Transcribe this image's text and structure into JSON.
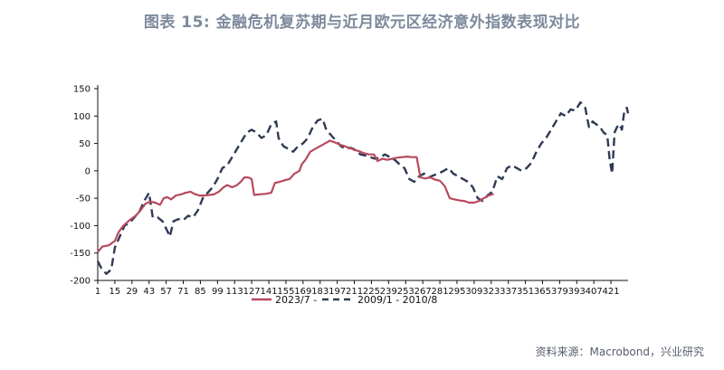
{
  "title": "图表 15: 金融危机复苏期与近月欧元区经济意外指数表现对比",
  "source": "资料来源：Macrobond，兴业研究",
  "colors": {
    "series_2023": "#b9495d",
    "series_2009": "#2f3a55",
    "axis": "#111111"
  },
  "chart_data": {
    "type": "line",
    "ylim": [
      -200,
      150
    ],
    "yticks": [
      -200,
      -150,
      -100,
      -50,
      0,
      50,
      100,
      150
    ],
    "xlim": [
      1,
      435
    ],
    "xticks": [
      1,
      15,
      29,
      43,
      57,
      71,
      85,
      99,
      113,
      127,
      141,
      155,
      169,
      183,
      197,
      211,
      225,
      239,
      253,
      267,
      281,
      295,
      309,
      323,
      337,
      351,
      365,
      379,
      393,
      407,
      421
    ],
    "xtick_labels": [
      "1",
      "15",
      "29",
      "43",
      "57",
      "71",
      "85",
      "99",
      "113",
      "127",
      "141",
      "155",
      "169",
      "183",
      "197",
      "211",
      "225",
      "239",
      "253",
      "267",
      "281",
      "295",
      "309",
      "323",
      "337",
      "351",
      "365",
      "379",
      "393",
      "407",
      "421"
    ],
    "legend": {
      "placement": "bottom",
      "entries": [
        "2023/7 -",
        "2009/1 - 2010/8"
      ]
    },
    "series": [
      {
        "name": "2023/7 -",
        "style": "solid",
        "points": [
          [
            1,
            -148
          ],
          [
            5,
            -138
          ],
          [
            10,
            -136
          ],
          [
            15,
            -128
          ],
          [
            18,
            -112
          ],
          [
            22,
            -100
          ],
          [
            27,
            -90
          ],
          [
            32,
            -82
          ],
          [
            36,
            -72
          ],
          [
            40,
            -60
          ],
          [
            44,
            -56
          ],
          [
            48,
            -58
          ],
          [
            52,
            -62
          ],
          [
            55,
            -50
          ],
          [
            58,
            -48
          ],
          [
            61,
            -52
          ],
          [
            65,
            -45
          ],
          [
            69,
            -43
          ],
          [
            73,
            -40
          ],
          [
            77,
            -38
          ],
          [
            80,
            -42
          ],
          [
            84,
            -45
          ],
          [
            88,
            -45
          ],
          [
            92,
            -44
          ],
          [
            96,
            -43
          ],
          [
            100,
            -38
          ],
          [
            104,
            -30
          ],
          [
            107,
            -26
          ],
          [
            111,
            -30
          ],
          [
            115,
            -26
          ],
          [
            118,
            -20
          ],
          [
            121,
            -12
          ],
          [
            124,
            -12
          ],
          [
            127,
            -15
          ],
          [
            129,
            -44
          ],
          [
            133,
            -43
          ],
          [
            138,
            -42
          ],
          [
            143,
            -40
          ],
          [
            146,
            -22
          ],
          [
            150,
            -20
          ],
          [
            154,
            -17
          ],
          [
            158,
            -15
          ],
          [
            162,
            -5
          ],
          [
            166,
            0
          ],
          [
            168,
            12
          ],
          [
            171,
            20
          ],
          [
            175,
            35
          ],
          [
            179,
            40
          ],
          [
            183,
            45
          ],
          [
            187,
            50
          ],
          [
            191,
            55
          ],
          [
            195,
            52
          ],
          [
            199,
            48
          ],
          [
            203,
            45
          ],
          [
            207,
            42
          ],
          [
            211,
            38
          ],
          [
            215,
            36
          ],
          [
            219,
            32
          ],
          [
            223,
            30
          ],
          [
            227,
            30
          ],
          [
            230,
            18
          ],
          [
            234,
            22
          ],
          [
            238,
            20
          ],
          [
            242,
            22
          ],
          [
            246,
            24
          ],
          [
            250,
            25
          ],
          [
            254,
            26
          ],
          [
            258,
            25
          ],
          [
            262,
            25
          ],
          [
            265,
            -12
          ],
          [
            269,
            -14
          ],
          [
            273,
            -12
          ],
          [
            277,
            -16
          ],
          [
            281,
            -18
          ],
          [
            285,
            -28
          ],
          [
            289,
            -50
          ],
          [
            293,
            -52
          ],
          [
            297,
            -54
          ],
          [
            301,
            -55
          ],
          [
            305,
            -58
          ],
          [
            309,
            -58
          ],
          [
            313,
            -55
          ],
          [
            317,
            -50
          ],
          [
            321,
            -45
          ],
          [
            325,
            -42
          ]
        ]
      },
      {
        "name": "2009/1 - 2010/8",
        "style": "dashed",
        "points": [
          [
            1,
            -165
          ],
          [
            4,
            -178
          ],
          [
            8,
            -188
          ],
          [
            12,
            -180
          ],
          [
            15,
            -140
          ],
          [
            19,
            -120
          ],
          [
            23,
            -100
          ],
          [
            27,
            -95
          ],
          [
            31,
            -85
          ],
          [
            35,
            -75
          ],
          [
            39,
            -55
          ],
          [
            43,
            -40
          ],
          [
            46,
            -85
          ],
          [
            50,
            -85
          ],
          [
            54,
            -92
          ],
          [
            58,
            -110
          ],
          [
            60,
            -120
          ],
          [
            63,
            -92
          ],
          [
            67,
            -88
          ],
          [
            71,
            -90
          ],
          [
            75,
            -82
          ],
          [
            79,
            -85
          ],
          [
            83,
            -72
          ],
          [
            87,
            -50
          ],
          [
            91,
            -40
          ],
          [
            95,
            -30
          ],
          [
            99,
            -15
          ],
          [
            103,
            5
          ],
          [
            107,
            10
          ],
          [
            111,
            25
          ],
          [
            115,
            40
          ],
          [
            119,
            55
          ],
          [
            123,
            70
          ],
          [
            127,
            75
          ],
          [
            131,
            70
          ],
          [
            135,
            60
          ],
          [
            139,
            65
          ],
          [
            143,
            85
          ],
          [
            147,
            90
          ],
          [
            149,
            60
          ],
          [
            153,
            45
          ],
          [
            157,
            40
          ],
          [
            161,
            35
          ],
          [
            165,
            45
          ],
          [
            169,
            50
          ],
          [
            173,
            60
          ],
          [
            177,
            80
          ],
          [
            181,
            92
          ],
          [
            185,
            95
          ],
          [
            188,
            75
          ],
          [
            192,
            65
          ],
          [
            196,
            55
          ],
          [
            200,
            45
          ],
          [
            204,
            40
          ],
          [
            208,
            42
          ],
          [
            212,
            38
          ],
          [
            216,
            30
          ],
          [
            220,
            28
          ],
          [
            224,
            25
          ],
          [
            228,
            22
          ],
          [
            232,
            24
          ],
          [
            236,
            30
          ],
          [
            240,
            25
          ],
          [
            244,
            20
          ],
          [
            248,
            12
          ],
          [
            252,
            5
          ],
          [
            256,
            -15
          ],
          [
            260,
            -20
          ],
          [
            264,
            -10
          ],
          [
            268,
            -5
          ],
          [
            272,
            -12
          ],
          [
            276,
            -8
          ],
          [
            280,
            -5
          ],
          [
            284,
            0
          ],
          [
            288,
            5
          ],
          [
            292,
            -5
          ],
          [
            296,
            -10
          ],
          [
            300,
            -15
          ],
          [
            304,
            -20
          ],
          [
            308,
            -30
          ],
          [
            312,
            -50
          ],
          [
            316,
            -55
          ],
          [
            320,
            -45
          ],
          [
            324,
            -38
          ],
          [
            328,
            -10
          ],
          [
            332,
            -15
          ],
          [
            336,
            5
          ],
          [
            340,
            10
          ],
          [
            344,
            5
          ],
          [
            348,
            0
          ],
          [
            352,
            5
          ],
          [
            356,
            15
          ],
          [
            360,
            35
          ],
          [
            364,
            50
          ],
          [
            368,
            60
          ],
          [
            372,
            75
          ],
          [
            376,
            90
          ],
          [
            380,
            105
          ],
          [
            384,
            100
          ],
          [
            388,
            112
          ],
          [
            392,
            110
          ],
          [
            396,
            125
          ],
          [
            400,
            115
          ],
          [
            403,
            80
          ],
          [
            406,
            90
          ],
          [
            409,
            85
          ],
          [
            412,
            80
          ],
          [
            415,
            70
          ],
          [
            418,
            65
          ],
          [
            420,
            20
          ],
          [
            422,
            -5
          ],
          [
            424,
            70
          ],
          [
            426,
            80
          ],
          [
            428,
            85
          ],
          [
            430,
            75
          ],
          [
            432,
            110
          ],
          [
            434,
            115
          ],
          [
            435,
            105
          ]
        ]
      }
    ]
  }
}
